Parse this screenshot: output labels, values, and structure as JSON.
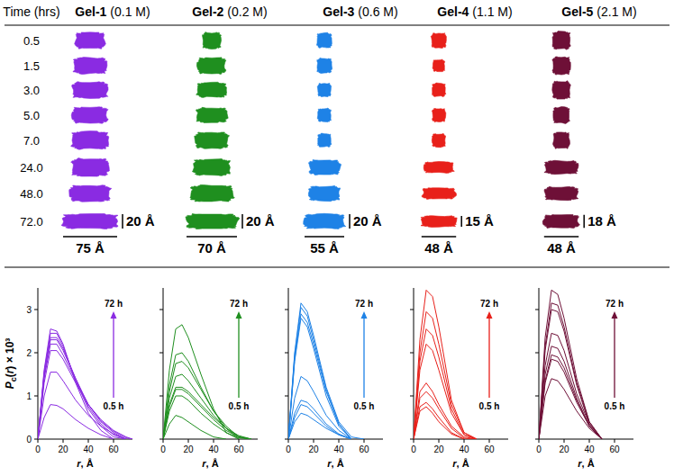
{
  "figure": {
    "time_header": "Time (hrs)",
    "times": [
      "0.5",
      "1.5",
      "3.0",
      "5.0",
      "7.0",
      "24.0",
      "48.0",
      "72.0"
    ],
    "gels": [
      {
        "name": "Gel-1",
        "concentration": "(0.1 M)",
        "color": "#8a2be2",
        "shapes": [
          [
            40,
            22
          ],
          [
            45,
            22
          ],
          [
            48,
            22
          ],
          [
            48,
            22
          ],
          [
            50,
            24
          ],
          [
            50,
            24
          ],
          [
            55,
            22
          ],
          [
            75,
            20
          ]
        ],
        "scale_length": 75,
        "scale_length_label": "75 Å",
        "scale_thickness": 20,
        "scale_thickness_label": "20 Å"
      },
      {
        "name": "Gel-2",
        "concentration": "(0.2 M)",
        "color": "#1f8f1f",
        "shapes": [
          [
            25,
            22
          ],
          [
            38,
            22
          ],
          [
            40,
            20
          ],
          [
            42,
            20
          ],
          [
            45,
            22
          ],
          [
            50,
            22
          ],
          [
            58,
            22
          ],
          [
            70,
            20
          ]
        ],
        "scale_length": 70,
        "scale_length_label": "70 Å",
        "scale_thickness": 20,
        "scale_thickness_label": "20 Å"
      },
      {
        "name": "Gel-3",
        "concentration": "(0.6 M)",
        "color": "#1e82e6",
        "shapes": [
          [
            20,
            20
          ],
          [
            20,
            20
          ],
          [
            18,
            18
          ],
          [
            18,
            18
          ],
          [
            18,
            18
          ],
          [
            42,
            20
          ],
          [
            42,
            20
          ],
          [
            55,
            20
          ]
        ],
        "scale_length": 55,
        "scale_length_label": "55 Å",
        "scale_thickness": 20,
        "scale_thickness_label": "20 Å"
      },
      {
        "name": "Gel-4",
        "concentration": "(1.1 M)",
        "color": "#e8201a",
        "shapes": [
          [
            20,
            20
          ],
          [
            16,
            16
          ],
          [
            18,
            18
          ],
          [
            18,
            18
          ],
          [
            18,
            18
          ],
          [
            40,
            15
          ],
          [
            45,
            15
          ],
          [
            48,
            15
          ]
        ],
        "scale_length": 48,
        "scale_length_label": "48 Å",
        "scale_thickness": 15,
        "scale_thickness_label": "15 Å"
      },
      {
        "name": "Gel-5",
        "concentration": "(2.1 M)",
        "color": "#6e1037",
        "shapes": [
          [
            24,
            24
          ],
          [
            24,
            24
          ],
          [
            24,
            24
          ],
          [
            22,
            22
          ],
          [
            22,
            22
          ],
          [
            45,
            18
          ],
          [
            45,
            18
          ],
          [
            48,
            18
          ]
        ],
        "scale_length": 48,
        "scale_length_label": "48 Å",
        "scale_thickness": 18,
        "scale_thickness_label": "18 Å"
      }
    ]
  },
  "chart_data": [
    {
      "type": "line",
      "color": "#8a2be2",
      "x_label": "r, Å",
      "y_label": "Pc(r) × 10³",
      "tick_labels": true,
      "x": [
        0,
        5,
        10,
        15,
        20,
        30,
        40,
        50,
        60,
        70,
        75
      ],
      "xlim": [
        0,
        75
      ],
      "xticks": [
        0,
        20,
        40,
        60
      ],
      "ylim": [
        0,
        3.5
      ],
      "yticks": [
        0,
        1,
        2,
        3
      ],
      "arrow_start": "0.5 h",
      "arrow_end": "72 h",
      "series": [
        {
          "values": [
            0,
            0.5,
            0.8,
            0.78,
            0.7,
            0.45,
            0.25,
            0.1,
            0,
            null,
            null
          ]
        },
        {
          "values": [
            0,
            1.0,
            1.55,
            1.55,
            1.35,
            0.9,
            0.55,
            0.3,
            0.12,
            0,
            null
          ]
        },
        {
          "values": [
            0,
            1.3,
            2.05,
            2.05,
            1.85,
            1.3,
            0.8,
            0.45,
            0.2,
            0.05,
            0
          ]
        },
        {
          "values": [
            0,
            1.4,
            2.2,
            2.2,
            1.95,
            1.35,
            0.8,
            0.42,
            0.18,
            0.03,
            0
          ]
        },
        {
          "values": [
            0,
            1.45,
            2.3,
            2.3,
            2.05,
            1.4,
            0.8,
            0.4,
            0.15,
            0,
            null
          ]
        },
        {
          "values": [
            0,
            1.5,
            2.35,
            2.35,
            2.1,
            1.4,
            0.75,
            0.35,
            0.1,
            0,
            null
          ]
        },
        {
          "values": [
            0,
            1.55,
            2.45,
            2.45,
            2.15,
            1.35,
            0.7,
            0.3,
            0.05,
            0,
            null
          ]
        },
        {
          "values": [
            0,
            1.6,
            2.55,
            2.5,
            2.2,
            1.3,
            0.6,
            0.2,
            0,
            null,
            null
          ]
        }
      ]
    },
    {
      "type": "line",
      "color": "#1f8f1f",
      "x_label": "r, Å",
      "tick_labels": "x",
      "x": [
        0,
        5,
        10,
        15,
        20,
        30,
        40,
        50,
        60,
        70,
        75
      ],
      "xlim": [
        0,
        75
      ],
      "xticks": [
        0,
        20,
        40,
        60
      ],
      "ylim": [
        0,
        3.5
      ],
      "yticks": [
        0,
        1,
        2,
        3
      ],
      "arrow_start": "0.5 h",
      "arrow_end": "72 h",
      "series": [
        {
          "values": [
            0,
            0.35,
            0.55,
            0.5,
            0.4,
            0.2,
            0.05,
            0,
            null,
            null,
            null
          ]
        },
        {
          "values": [
            0,
            0.65,
            1.0,
            1.0,
            0.9,
            0.6,
            0.35,
            0.15,
            0.03,
            0,
            null
          ]
        },
        {
          "values": [
            0,
            0.75,
            1.15,
            1.15,
            1.05,
            0.75,
            0.45,
            0.2,
            0.05,
            0,
            null
          ]
        },
        {
          "values": [
            0,
            0.8,
            1.2,
            1.2,
            1.1,
            0.8,
            0.5,
            0.25,
            0.08,
            0,
            null
          ]
        },
        {
          "values": [
            0,
            0.95,
            1.45,
            1.5,
            1.35,
            0.95,
            0.55,
            0.25,
            0.05,
            0,
            null
          ]
        },
        {
          "values": [
            0,
            1.1,
            1.75,
            1.8,
            1.65,
            1.15,
            0.65,
            0.3,
            0.05,
            0,
            null
          ]
        },
        {
          "values": [
            0,
            1.25,
            1.95,
            2.0,
            1.8,
            1.2,
            0.65,
            0.25,
            0,
            null,
            null
          ]
        },
        {
          "values": [
            0,
            1.6,
            2.55,
            2.65,
            2.35,
            1.5,
            0.7,
            0.15,
            0,
            null,
            null
          ]
        }
      ]
    },
    {
      "type": "line",
      "color": "#1e82e6",
      "x_label": "r, Å",
      "tick_labels": "x",
      "x": [
        0,
        5,
        10,
        15,
        20,
        30,
        40,
        50,
        60,
        70,
        75
      ],
      "xlim": [
        0,
        75
      ],
      "xticks": [
        0,
        20,
        40,
        60
      ],
      "ylim": [
        0,
        3.5
      ],
      "yticks": [
        0,
        1,
        2,
        3
      ],
      "arrow_start": "0.5 h",
      "arrow_end": "72 h",
      "series": [
        {
          "values": [
            0,
            0.4,
            0.6,
            0.55,
            0.45,
            0.25,
            0.1,
            0,
            null,
            null,
            null
          ]
        },
        {
          "values": [
            0,
            0.5,
            0.8,
            0.75,
            0.6,
            0.3,
            0.1,
            0,
            null,
            null,
            null
          ]
        },
        {
          "values": [
            0,
            0.6,
            0.9,
            0.85,
            0.7,
            0.35,
            0.12,
            0,
            null,
            null,
            null
          ]
        },
        {
          "values": [
            0,
            0.95,
            1.45,
            1.35,
            1.1,
            0.55,
            0.2,
            0,
            null,
            null,
            null
          ]
        },
        {
          "values": [
            0,
            1.8,
            2.8,
            2.6,
            2.1,
            1.0,
            0.3,
            0,
            null,
            null,
            null
          ]
        },
        {
          "values": [
            0,
            1.85,
            2.9,
            2.7,
            2.2,
            1.1,
            0.35,
            0,
            null,
            null,
            null
          ]
        },
        {
          "values": [
            0,
            1.95,
            3.05,
            2.85,
            2.3,
            1.15,
            0.35,
            0,
            null,
            null,
            null
          ]
        },
        {
          "values": [
            0,
            2.0,
            3.15,
            2.95,
            2.4,
            1.2,
            0.4,
            0.05,
            0,
            null,
            null
          ]
        }
      ]
    },
    {
      "type": "line",
      "color": "#e8201a",
      "x_label": "r, Å",
      "tick_labels": "x",
      "x": [
        0,
        5,
        10,
        15,
        20,
        30,
        40,
        50,
        60,
        70,
        75
      ],
      "xlim": [
        0,
        75
      ],
      "xticks": [
        0,
        20,
        40,
        60
      ],
      "ylim": [
        0,
        3.5
      ],
      "yticks": [
        0,
        1,
        2,
        3
      ],
      "arrow_start": "0.5 h",
      "arrow_end": "72 h",
      "series": [
        {
          "values": [
            0,
            0.65,
            0.75,
            0.6,
            0.4,
            0.12,
            0,
            null,
            null,
            null,
            null
          ]
        },
        {
          "values": [
            0,
            0.75,
            0.85,
            0.7,
            0.5,
            0.15,
            0,
            null,
            null,
            null,
            null
          ]
        },
        {
          "values": [
            0,
            0.95,
            1.1,
            0.95,
            0.7,
            0.25,
            0.02,
            0,
            null,
            null,
            null
          ]
        },
        {
          "values": [
            0,
            1.1,
            1.3,
            1.1,
            0.8,
            0.3,
            0.05,
            0,
            null,
            null,
            null
          ]
        },
        {
          "values": [
            0,
            1.6,
            2.2,
            2.05,
            1.6,
            0.6,
            0.1,
            0,
            null,
            null,
            null
          ]
        },
        {
          "values": [
            0,
            1.8,
            2.55,
            2.4,
            1.9,
            0.7,
            0.1,
            0,
            null,
            null,
            null
          ]
        },
        {
          "values": [
            0,
            2.0,
            2.95,
            2.8,
            2.2,
            0.8,
            0.15,
            0,
            null,
            null,
            null
          ]
        },
        {
          "values": [
            0,
            2.3,
            3.45,
            3.3,
            2.6,
            0.9,
            0.15,
            0,
            null,
            null,
            null
          ]
        }
      ]
    },
    {
      "type": "line",
      "color": "#6e1037",
      "x_label": "r, Å",
      "tick_labels": "x",
      "x": [
        0,
        5,
        10,
        15,
        20,
        30,
        40,
        50,
        60,
        70,
        75
      ],
      "xlim": [
        0,
        75
      ],
      "xticks": [
        0,
        20,
        40,
        60
      ],
      "ylim": [
        0,
        3.5
      ],
      "yticks": [
        0,
        1,
        2,
        3
      ],
      "arrow_start": "0.5 h",
      "arrow_end": "72 h",
      "series": [
        {
          "values": [
            0,
            1.0,
            1.4,
            1.35,
            1.15,
            0.65,
            0.25,
            0,
            null,
            null,
            null
          ]
        },
        {
          "values": [
            0,
            1.3,
            1.85,
            1.8,
            1.55,
            0.85,
            0.3,
            0,
            null,
            null,
            null
          ]
        },
        {
          "values": [
            0,
            1.35,
            1.95,
            1.9,
            1.65,
            0.9,
            0.3,
            0,
            null,
            null,
            null
          ]
        },
        {
          "values": [
            0,
            1.5,
            2.15,
            2.1,
            1.8,
            0.95,
            0.3,
            0,
            null,
            null,
            null
          ]
        },
        {
          "values": [
            0,
            1.7,
            2.45,
            2.4,
            2.05,
            1.05,
            0.35,
            0,
            null,
            null,
            null
          ]
        },
        {
          "values": [
            0,
            2.05,
            3.0,
            2.95,
            2.5,
            1.25,
            0.35,
            0,
            null,
            null,
            null
          ]
        },
        {
          "values": [
            0,
            2.15,
            3.15,
            3.1,
            2.6,
            1.3,
            0.4,
            0,
            null,
            null,
            null
          ]
        },
        {
          "values": [
            0,
            2.35,
            3.45,
            3.35,
            2.8,
            1.4,
            0.4,
            0,
            null,
            null,
            null
          ]
        }
      ]
    }
  ]
}
